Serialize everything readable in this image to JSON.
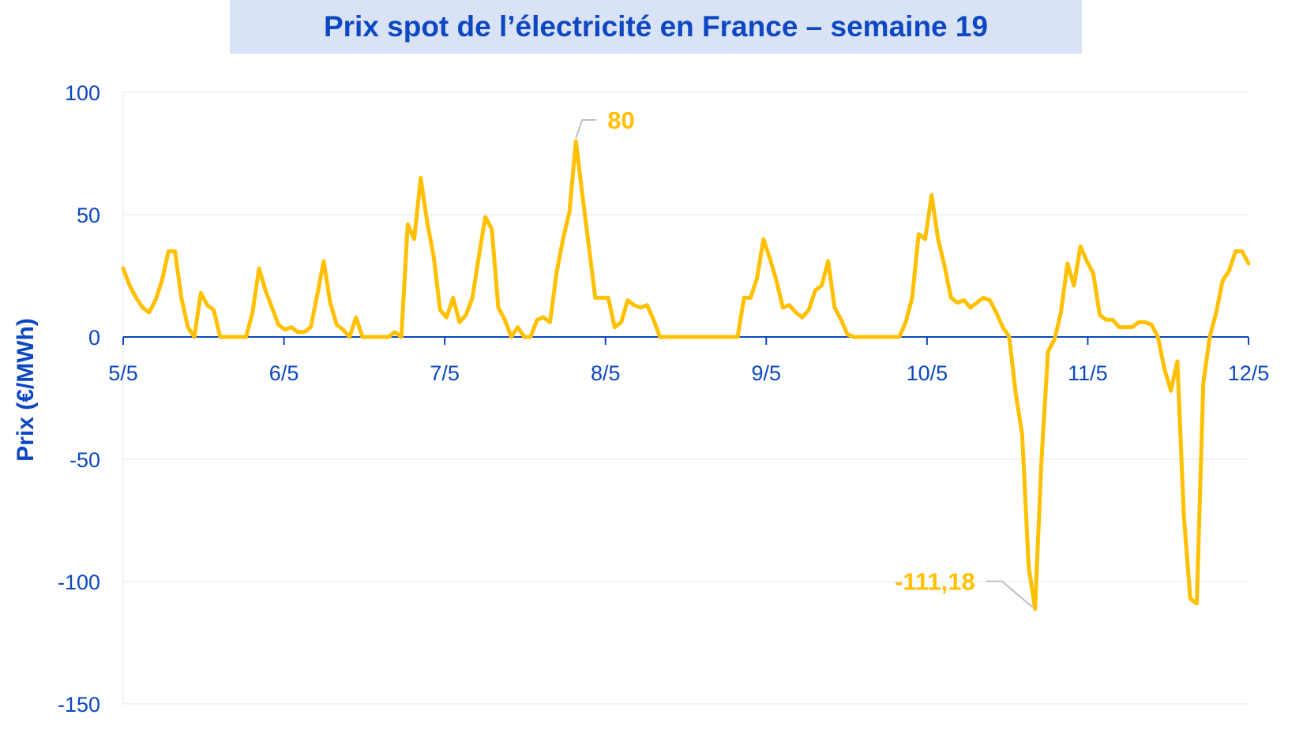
{
  "chart_data": {
    "type": "line",
    "title": "Prix spot de l’électricité en France – semaine 19",
    "ylabel": "Prix (€/MWh)",
    "xlabel": "",
    "ylim": [
      -150,
      100
    ],
    "yticks": [
      100,
      50,
      0,
      -50,
      -100,
      -150
    ],
    "xticks": [
      "5/5",
      "6/5",
      "7/5",
      "8/5",
      "9/5",
      "10/5",
      "11/5",
      "12/5"
    ],
    "grid": true,
    "line_color": "#ffc000",
    "text_color": "#0d47c2",
    "series": [
      {
        "name": "",
        "values": [
          28,
          21,
          16,
          12,
          10,
          15,
          23,
          35,
          35,
          16,
          4,
          0,
          18,
          13,
          11,
          0,
          0,
          0,
          0,
          0,
          10,
          28,
          19,
          12,
          5,
          3,
          4,
          2,
          2,
          4,
          17,
          31,
          14,
          5,
          3,
          0,
          8,
          0,
          0,
          0,
          0,
          0,
          2,
          0,
          46,
          40,
          65,
          47,
          33,
          11,
          8,
          16,
          6,
          9,
          16,
          33,
          49,
          44,
          12,
          7,
          0,
          4,
          0,
          0,
          7,
          8,
          6,
          26,
          40,
          51,
          80,
          58,
          37,
          16,
          16,
          16,
          4,
          6,
          15,
          13,
          12,
          13,
          7,
          0,
          0,
          0,
          0,
          0,
          0,
          0,
          0,
          0,
          0,
          0,
          0,
          0,
          16,
          16,
          24,
          40,
          32,
          23,
          12,
          13,
          10,
          8,
          11,
          19,
          21,
          31,
          12,
          7,
          1,
          0,
          0,
          0,
          0,
          0,
          0,
          0,
          0,
          6,
          16,
          42,
          40,
          58,
          40,
          29,
          16,
          14,
          15,
          12,
          14,
          16,
          15,
          10,
          4,
          0,
          -23,
          -40,
          -94,
          -111.18,
          -50,
          -6,
          -1,
          10,
          30,
          21,
          37,
          31,
          26,
          9,
          7,
          7,
          4,
          4,
          4,
          6,
          6,
          5,
          0,
          -13,
          -22,
          -10,
          -73,
          -107,
          -109,
          -19,
          0,
          10,
          23,
          27,
          35,
          35,
          30
        ]
      }
    ],
    "annotations": [
      {
        "text": "80",
        "value": 80
      },
      {
        "text": "-111,18",
        "value": -111.18
      }
    ]
  }
}
